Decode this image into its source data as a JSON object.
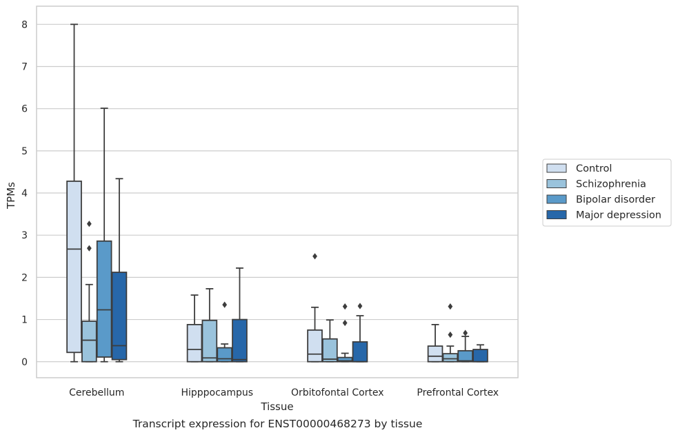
{
  "caption": "Transcript expression for ENST00000468273 by tissue",
  "chart_data": {
    "type": "box",
    "title": "",
    "xlabel": "Tissue",
    "ylabel": "TPMs",
    "ylim": [
      -0.38,
      8.43
    ],
    "yticks": [
      0,
      1,
      2,
      3,
      4,
      5,
      6,
      7,
      8
    ],
    "grid": "horizontal",
    "legend_position": "right",
    "categories": [
      "Cerebellum",
      "Hipppocampus",
      "Orbitofontal Cortex",
      "Prefrontal Cortex"
    ],
    "series": [
      {
        "name": "Control",
        "color": "#d0dff0",
        "boxes": [
          {
            "low": 0.0,
            "q1": 0.22,
            "median": 2.67,
            "q3": 4.28,
            "high": 8.0,
            "outliers": []
          },
          {
            "low": 0.0,
            "q1": 0.0,
            "median": 0.29,
            "q3": 0.88,
            "high": 1.58,
            "outliers": []
          },
          {
            "low": 0.0,
            "q1": 0.0,
            "median": 0.18,
            "q3": 0.75,
            "high": 1.29,
            "outliers": [
              2.5
            ]
          },
          {
            "low": 0.0,
            "q1": 0.0,
            "median": 0.13,
            "q3": 0.37,
            "high": 0.88,
            "outliers": []
          }
        ]
      },
      {
        "name": "Schizophrenia",
        "color": "#9ac3dc",
        "boxes": [
          {
            "low": 0.0,
            "q1": 0.0,
            "median": 0.51,
            "q3": 0.96,
            "high": 1.83,
            "outliers": [
              2.69,
              3.27
            ]
          },
          {
            "low": 0.0,
            "q1": 0.0,
            "median": 0.09,
            "q3": 0.98,
            "high": 1.73,
            "outliers": []
          },
          {
            "low": 0.0,
            "q1": 0.0,
            "median": 0.06,
            "q3": 0.54,
            "high": 0.99,
            "outliers": []
          },
          {
            "low": 0.0,
            "q1": 0.0,
            "median": 0.07,
            "q3": 0.19,
            "high": 0.37,
            "outliers": [
              0.64,
              1.31
            ]
          }
        ]
      },
      {
        "name": "Bipolar disorder",
        "color": "#5a9ac9",
        "boxes": [
          {
            "low": 0.0,
            "q1": 0.11,
            "median": 1.23,
            "q3": 2.86,
            "high": 6.01,
            "outliers": []
          },
          {
            "low": 0.0,
            "q1": 0.0,
            "median": 0.07,
            "q3": 0.33,
            "high": 0.42,
            "outliers": [
              1.35
            ]
          },
          {
            "low": 0.0,
            "q1": 0.0,
            "median": 0.02,
            "q3": 0.1,
            "high": 0.2,
            "outliers": [
              0.92,
              1.31
            ]
          },
          {
            "low": 0.0,
            "q1": 0.0,
            "median": 0.02,
            "q3": 0.26,
            "high": 0.6,
            "outliers": [
              0.68
            ]
          }
        ]
      },
      {
        "name": "Major depression",
        "color": "#2767a9",
        "boxes": [
          {
            "low": 0.0,
            "q1": 0.05,
            "median": 0.38,
            "q3": 2.12,
            "high": 4.34,
            "outliers": []
          },
          {
            "low": 0.0,
            "q1": 0.0,
            "median": 0.05,
            "q3": 1.0,
            "high": 2.22,
            "outliers": []
          },
          {
            "low": 0.0,
            "q1": 0.0,
            "median": 0.0,
            "q3": 0.47,
            "high": 1.09,
            "outliers": [
              1.32
            ]
          },
          {
            "low": 0.0,
            "q1": 0.0,
            "median": 0.0,
            "q3": 0.29,
            "high": 0.4,
            "outliers": []
          }
        ]
      }
    ]
  }
}
